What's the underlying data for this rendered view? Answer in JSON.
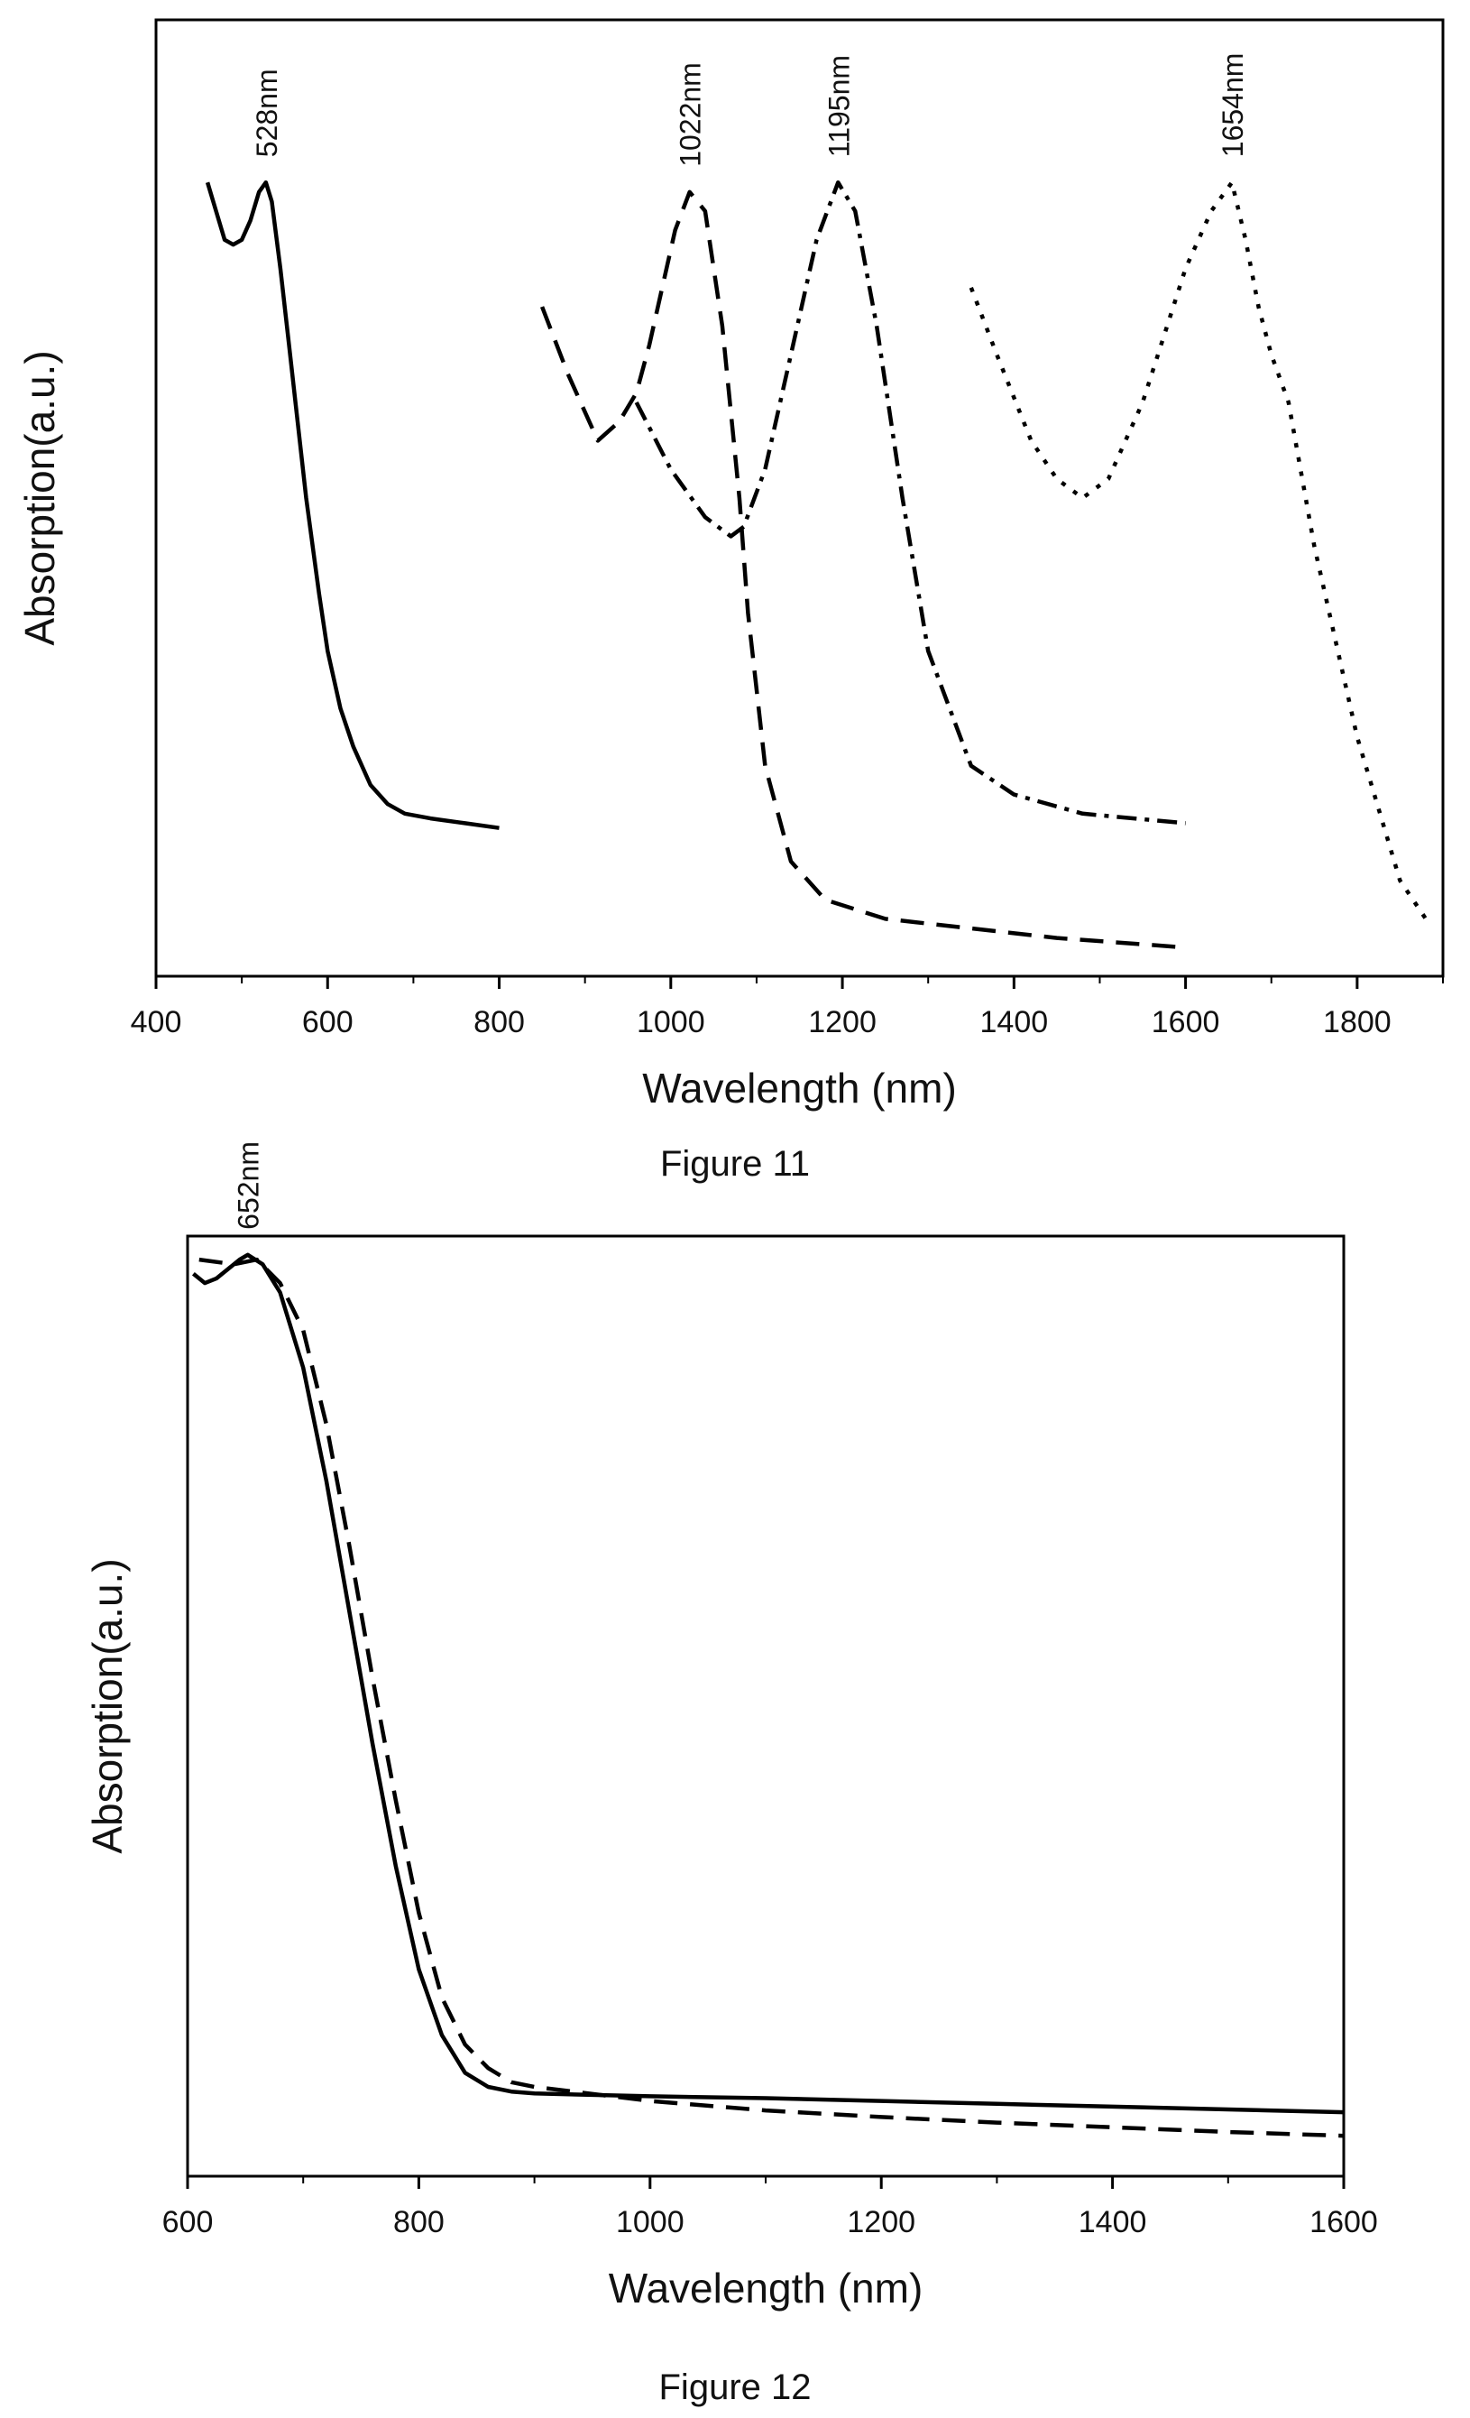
{
  "figures": [
    {
      "caption": "Figure 11",
      "chart_data": {
        "type": "line",
        "xlabel": "Wavelength (nm)",
        "ylabel": "Absorption(a.u.)",
        "xlim": [
          400,
          1900
        ],
        "ylim": [
          0,
          1
        ],
        "xticks": [
          400,
          600,
          800,
          1000,
          1200,
          1400,
          1600,
          1800
        ],
        "yticks": [],
        "grid": false,
        "legend": "none",
        "series": [
          {
            "style": "solid",
            "x": [
              460,
              470,
              480,
              490,
              500,
              510,
              520,
              528,
              535,
              545,
              555,
              565,
              575,
              590,
              600,
              615,
              630,
              650,
              670,
              690,
              720,
              760,
              800
            ],
            "y": [
              0.83,
              0.8,
              0.77,
              0.765,
              0.77,
              0.79,
              0.82,
              0.83,
              0.81,
              0.74,
              0.66,
              0.58,
              0.5,
              0.4,
              0.34,
              0.28,
              0.24,
              0.2,
              0.18,
              0.17,
              0.165,
              0.16,
              0.155
            ]
          },
          {
            "style": "dashed",
            "x": [
              850,
              880,
              915,
              940,
              960,
              975,
              990,
              1005,
              1022,
              1040,
              1060,
              1080,
              1090,
              1110,
              1140,
              1180,
              1250,
              1350,
              1450,
              1600
            ],
            "y": [
              0.7,
              0.63,
              0.56,
              0.58,
              0.61,
              0.66,
              0.72,
              0.78,
              0.82,
              0.8,
              0.68,
              0.5,
              0.38,
              0.22,
              0.12,
              0.08,
              0.06,
              0.05,
              0.04,
              0.03
            ]
          },
          {
            "style": "dash-dot",
            "x": [
              960,
              1000,
              1040,
              1070,
              1085,
              1110,
              1140,
              1170,
              1195,
              1215,
              1240,
              1270,
              1300,
              1350,
              1400,
              1480,
              1600
            ],
            "y": [
              0.6,
              0.53,
              0.48,
              0.46,
              0.47,
              0.53,
              0.65,
              0.77,
              0.83,
              0.8,
              0.68,
              0.5,
              0.34,
              0.22,
              0.19,
              0.17,
              0.16
            ]
          },
          {
            "style": "dotted",
            "x": [
              1350,
              1380,
              1420,
              1450,
              1480,
              1510,
              1550,
              1600,
              1630,
              1654,
              1670,
              1685,
              1700,
              1720,
              1750,
              1800,
              1850,
              1880
            ],
            "y": [
              0.72,
              0.65,
              0.56,
              0.52,
              0.5,
              0.52,
              0.6,
              0.74,
              0.8,
              0.83,
              0.77,
              0.7,
              0.65,
              0.6,
              0.45,
              0.25,
              0.1,
              0.06
            ]
          }
        ],
        "annotations": [
          {
            "text": "528nm",
            "x": 528
          },
          {
            "text": "1022nm",
            "x": 1022
          },
          {
            "text": "1195nm",
            "x": 1195
          },
          {
            "text": "1654nm",
            "x": 1654
          }
        ]
      }
    },
    {
      "caption": "Figure 12",
      "chart_data": {
        "type": "line",
        "xlabel": "Wavelength (nm)",
        "ylabel": "Absorption(a.u.)",
        "xlim": [
          600,
          1600
        ],
        "ylim": [
          0,
          1
        ],
        "xticks": [
          600,
          800,
          1000,
          1200,
          1400,
          1600
        ],
        "yticks": [],
        "grid": false,
        "legend": "none",
        "series": [
          {
            "style": "solid",
            "x": [
              605,
              615,
              625,
              635,
              645,
              652,
              665,
              680,
              700,
              720,
              740,
              760,
              780,
              800,
              820,
              840,
              860,
              880,
              900,
              1000,
              1100,
              1200,
              1300,
              1400,
              1500,
              1600
            ],
            "y": [
              0.96,
              0.95,
              0.955,
              0.965,
              0.975,
              0.98,
              0.97,
              0.94,
              0.86,
              0.74,
              0.6,
              0.46,
              0.33,
              0.22,
              0.15,
              0.11,
              0.095,
              0.09,
              0.088,
              0.085,
              0.083,
              0.08,
              0.077,
              0.074,
              0.071,
              0.068
            ]
          },
          {
            "style": "dashed",
            "x": [
              610,
              640,
              660,
              680,
              700,
              720,
              740,
              760,
              780,
              800,
              820,
              840,
              860,
              880,
              900,
              1000,
              1100,
              1200,
              1300,
              1400,
              1500,
              1600
            ],
            "y": [
              0.975,
              0.97,
              0.975,
              0.95,
              0.9,
              0.8,
              0.67,
              0.53,
              0.4,
              0.28,
              0.19,
              0.14,
              0.115,
              0.1,
              0.095,
              0.08,
              0.07,
              0.063,
              0.057,
              0.052,
              0.047,
              0.043
            ]
          }
        ],
        "annotations": [
          {
            "text": "652nm",
            "x": 652
          }
        ]
      }
    }
  ]
}
